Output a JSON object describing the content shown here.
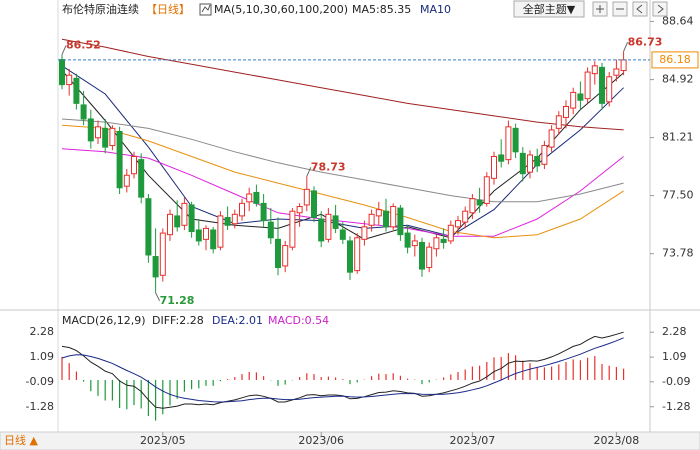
{
  "toolbar": {
    "title": "布伦特原油连续",
    "period": "【日线】",
    "ma_legend": "MA(5,10,30,60,100,200)",
    "ma5": "MA5:85.35",
    "ma10": "MA10",
    "theme_button": "全部主题▼"
  },
  "bottom_bar": {
    "period": "日线 ▲"
  },
  "chart_data": [
    {
      "type": "candlestick",
      "open": [
        86.2,
        84.6,
        85.0,
        83.3,
        82.4,
        81.2,
        81.8,
        80.7,
        81.6,
        78.1,
        78.9,
        79.8,
        77.3,
        73.6,
        72.4,
        75.0,
        76.2,
        75.6,
        76.9,
        75.3,
        74.7,
        75.3,
        74.2,
        76.1,
        75.7,
        76.2,
        77.1,
        77.7,
        77.0,
        75.8,
        74.7,
        73.0,
        74.2,
        76.4,
        76.9,
        77.8,
        76.0,
        74.7,
        76.2,
        75.3,
        74.6,
        72.7,
        74.7,
        75.6,
        76.2,
        76.5,
        75.5,
        76.7,
        75.1,
        74.3,
        74.5,
        72.9,
        74.1,
        74.7,
        74.6,
        75.5,
        75.8,
        76.4,
        77.2,
        77.0,
        78.6,
        80.1,
        79.8,
        81.8,
        80.2,
        79.0,
        80.0,
        79.5,
        80.6,
        81.8,
        82.5,
        83.1,
        84.0,
        83.7,
        85.3,
        85.7,
        83.5,
        85.2,
        85.5
      ],
      "high": [
        86.52,
        85.6,
        85.3,
        84.2,
        83.0,
        82.3,
        82.4,
        82.0,
        81.9,
        79.2,
        80.3,
        80.2,
        77.6,
        75.4,
        75.4,
        76.6,
        77.2,
        77.4,
        77.1,
        76.0,
        75.6,
        75.5,
        76.5,
        76.8,
        76.6,
        77.3,
        78.0,
        78.2,
        77.6,
        76.7,
        76.1,
        74.6,
        76.7,
        77.0,
        78.73,
        78.1,
        76.5,
        76.7,
        76.9,
        75.8,
        74.9,
        75.1,
        75.9,
        76.6,
        77.1,
        77.3,
        77.0,
        76.9,
        75.6,
        75.0,
        74.8,
        74.5,
        75.0,
        75.4,
        75.9,
        76.2,
        76.8,
        77.6,
        78.0,
        79.0,
        80.3,
        81.1,
        82.3,
        82.1,
        80.6,
        80.4,
        80.5,
        81.0,
        82.0,
        82.9,
        83.6,
        84.4,
        84.8,
        85.7,
        86.1,
        86.0,
        85.4,
        86.2,
        86.73
      ],
      "low": [
        84.3,
        83.9,
        83.0,
        82.0,
        80.5,
        80.8,
        80.2,
        80.4,
        77.6,
        77.7,
        78.6,
        77.0,
        73.2,
        71.28,
        72.0,
        74.6,
        75.2,
        75.3,
        74.8,
        74.3,
        74.0,
        73.8,
        74.0,
        75.3,
        75.4,
        75.9,
        76.5,
        76.8,
        75.5,
        74.4,
        72.4,
        72.6,
        74.0,
        75.5,
        76.5,
        75.8,
        74.2,
        74.5,
        75.1,
        74.4,
        72.1,
        72.5,
        74.3,
        75.2,
        75.6,
        75.2,
        75.3,
        74.6,
        73.8,
        73.6,
        72.3,
        72.6,
        73.6,
        74.1,
        74.4,
        75.0,
        75.4,
        76.0,
        76.4,
        76.8,
        78.2,
        79.3,
        79.5,
        79.9,
        78.4,
        78.6,
        79.0,
        79.2,
        80.3,
        81.4,
        81.8,
        82.7,
        83.0,
        83.4,
        84.6,
        83.0,
        83.2,
        84.8,
        85.2
      ],
      "close": [
        84.6,
        85.2,
        83.4,
        82.4,
        81.0,
        81.9,
        80.6,
        81.8,
        78.0,
        78.8,
        80.0,
        77.4,
        73.7,
        72.3,
        75.1,
        76.3,
        75.5,
        77.0,
        75.2,
        74.6,
        75.4,
        74.1,
        76.2,
        75.6,
        76.3,
        77.0,
        77.6,
        77.0,
        75.9,
        74.8,
        72.9,
        74.3,
        76.5,
        76.8,
        77.9,
        76.1,
        74.6,
        76.3,
        75.4,
        74.7,
        72.6,
        74.8,
        75.5,
        76.3,
        76.6,
        75.5,
        76.8,
        75.0,
        74.2,
        74.6,
        72.8,
        74.2,
        74.8,
        74.5,
        75.6,
        75.9,
        76.5,
        77.3,
        76.9,
        78.7,
        80.0,
        79.7,
        81.9,
        80.3,
        78.9,
        80.1,
        79.4,
        80.7,
        81.7,
        82.6,
        83.2,
        84.1,
        83.6,
        85.4,
        85.8,
        83.4,
        85.1,
        85.6,
        86.18
      ],
      "up_color": "#e8302c",
      "down_color": "#1e9a3c",
      "last_price_color": "#f08a00",
      "last_line_color": "#3a7fc0",
      "series": [
        {
          "color": "#222222",
          "x": [
            0,
            6,
            12,
            18,
            24,
            30,
            36,
            42,
            48,
            54,
            60,
            66,
            72,
            78
          ],
          "values": [
            85.5,
            82.3,
            78.8,
            76.0,
            75.6,
            75.4,
            76.3,
            74.7,
            75.5,
            74.8,
            77.8,
            79.9,
            83.0,
            85.35
          ]
        },
        {
          "color": "#1a2a7a",
          "x": [
            0,
            6,
            12,
            18,
            24,
            30,
            36,
            42,
            48,
            54,
            60,
            66,
            72,
            78
          ],
          "values": [
            85.8,
            84.0,
            80.6,
            76.8,
            75.7,
            76.0,
            75.9,
            75.4,
            75.6,
            74.9,
            76.6,
            79.5,
            81.7,
            84.4
          ]
        },
        {
          "color": "#dd22dd",
          "x": [
            0,
            6,
            12,
            18,
            24,
            30,
            36,
            42,
            48,
            54,
            60,
            66,
            72,
            78
          ],
          "values": [
            80.5,
            80.3,
            79.9,
            78.8,
            77.6,
            76.4,
            76.0,
            75.7,
            75.4,
            74.9,
            74.9,
            76.0,
            77.8,
            80.0
          ]
        },
        {
          "color": "#e8900f",
          "x": [
            0,
            6,
            12,
            18,
            24,
            30,
            36,
            42,
            48,
            54,
            60,
            66,
            72,
            78
          ],
          "values": [
            82.0,
            81.8,
            81.0,
            80.0,
            79.0,
            78.3,
            77.6,
            76.9,
            76.1,
            75.2,
            74.8,
            75.0,
            76.0,
            77.8
          ]
        },
        {
          "color": "#8a8a8a",
          "x": [
            0,
            6,
            12,
            18,
            24,
            30,
            36,
            42,
            48,
            54,
            60,
            66,
            72,
            78
          ],
          "values": [
            82.4,
            82.2,
            81.8,
            81.1,
            80.3,
            79.6,
            79.0,
            78.5,
            78.0,
            77.5,
            77.1,
            77.1,
            77.6,
            78.3
          ]
        },
        {
          "color": "#a02020",
          "x": [
            0,
            6,
            12,
            18,
            24,
            30,
            36,
            42,
            48,
            54,
            60,
            66,
            72,
            78
          ],
          "values": [
            87.5,
            87.0,
            86.4,
            85.9,
            85.4,
            84.9,
            84.4,
            83.9,
            83.4,
            83.0,
            82.6,
            82.2,
            81.9,
            81.7
          ]
        }
      ],
      "annotations": [
        {
          "x": 0,
          "y": 86.52,
          "color": "#c8382c"
        },
        {
          "x": 34,
          "y": 78.73,
          "color": "#c8382c"
        },
        {
          "x": 13,
          "y": 71.28,
          "color": "#2a9a3a"
        },
        {
          "x": 78,
          "y": 86.73,
          "color": "#c8382c"
        }
      ],
      "ylim": [
        70.5,
        89.5
      ],
      "yticks": [
        88.64,
        84.92,
        81.21,
        {
          "value": 77.5,
          "label": "77.50"
        },
        73.78
      ]
    },
    {
      "type": "macd",
      "title": "MACD(26,12,9)",
      "dif_label": "DIFF:2.28",
      "dea_label": "DEA:2.01",
      "macd_label": "MACD:0.54",
      "categories": [
        null,
        null,
        null,
        null,
        null,
        null,
        null,
        null,
        null,
        null,
        null,
        null,
        null,
        null,
        "2023/05",
        null,
        null,
        null,
        null,
        null,
        null,
        null,
        null,
        null,
        null,
        null,
        null,
        null,
        null,
        null,
        null,
        null,
        null,
        null,
        null,
        null,
        "2023/06",
        null,
        null,
        null,
        null,
        null,
        null,
        null,
        null,
        null,
        null,
        null,
        null,
        null,
        null,
        null,
        null,
        null,
        null,
        null,
        null,
        "2023/07",
        null,
        null,
        null,
        null,
        null,
        null,
        null,
        null,
        null,
        null,
        null,
        null,
        null,
        null,
        null,
        null,
        null,
        null,
        null,
        "2023/08",
        null
      ],
      "series": [
        {
          "color": "#222222",
          "values": [
            1.6,
            1.55,
            1.4,
            1.15,
            0.85,
            0.65,
            0.42,
            0.3,
            -0.05,
            -0.25,
            -0.3,
            -0.55,
            -0.95,
            -1.3,
            -1.35,
            -1.3,
            -1.25,
            -1.15,
            -1.15,
            -1.18,
            -1.15,
            -1.18,
            -1.08,
            -1.02,
            -0.95,
            -0.85,
            -0.75,
            -0.72,
            -0.78,
            -0.88,
            -1.05,
            -1.05,
            -0.95,
            -0.85,
            -0.72,
            -0.7,
            -0.75,
            -0.72,
            -0.72,
            -0.75,
            -0.9,
            -0.88,
            -0.8,
            -0.7,
            -0.6,
            -0.58,
            -0.52,
            -0.55,
            -0.62,
            -0.64,
            -0.78,
            -0.75,
            -0.68,
            -0.62,
            -0.52,
            -0.42,
            -0.3,
            -0.15,
            -0.05,
            0.15,
            0.4,
            0.55,
            0.8,
            0.9,
            0.88,
            0.92,
            0.9,
            0.98,
            1.1,
            1.25,
            1.42,
            1.6,
            1.7,
            1.9,
            2.08,
            2.0,
            2.08,
            2.18,
            2.28
          ]
        },
        {
          "color": "#1a2a8a",
          "values": [
            1.05,
            1.15,
            1.2,
            1.19,
            1.12,
            1.03,
            0.91,
            0.79,
            0.62,
            0.45,
            0.3,
            0.13,
            -0.09,
            -0.33,
            -0.53,
            -0.69,
            -0.8,
            -0.87,
            -0.93,
            -0.98,
            -1.01,
            -1.04,
            -1.05,
            -1.04,
            -1.02,
            -0.99,
            -0.94,
            -0.9,
            -0.87,
            -0.87,
            -0.91,
            -0.94,
            -0.94,
            -0.92,
            -0.88,
            -0.84,
            -0.82,
            -0.8,
            -0.78,
            -0.77,
            -0.8,
            -0.82,
            -0.81,
            -0.79,
            -0.75,
            -0.72,
            -0.68,
            -0.65,
            -0.65,
            -0.65,
            -0.68,
            -0.69,
            -0.69,
            -0.68,
            -0.65,
            -0.61,
            -0.55,
            -0.47,
            -0.39,
            -0.28,
            -0.14,
            0.0,
            0.16,
            0.31,
            0.42,
            0.52,
            0.6,
            0.68,
            0.78,
            0.88,
            0.99,
            1.11,
            1.23,
            1.37,
            1.51,
            1.62,
            1.74,
            1.87,
            2.01
          ]
        }
      ],
      "histogram": {
        "up_color": "#e8302c",
        "down_color": "#1e9a3c",
        "values": [
          1.1,
          0.8,
          0.4,
          -0.08,
          -0.54,
          -0.76,
          -0.98,
          -0.98,
          -1.34,
          -1.4,
          -1.2,
          -1.36,
          -1.72,
          -1.94,
          -1.64,
          -1.22,
          -0.9,
          -0.56,
          -0.44,
          -0.4,
          -0.28,
          -0.28,
          -0.06,
          0.04,
          0.14,
          0.28,
          0.38,
          0.36,
          0.18,
          -0.02,
          -0.28,
          -0.22,
          -0.02,
          0.14,
          0.32,
          0.28,
          0.14,
          0.16,
          0.12,
          0.04,
          -0.2,
          -0.12,
          0.02,
          0.18,
          0.3,
          0.28,
          0.32,
          0.2,
          0.06,
          0.02,
          -0.2,
          -0.12,
          0.02,
          0.12,
          0.26,
          0.38,
          0.5,
          0.64,
          0.68,
          0.86,
          1.08,
          1.1,
          1.28,
          1.18,
          0.92,
          0.8,
          0.6,
          0.6,
          0.64,
          0.74,
          0.86,
          0.98,
          0.94,
          1.06,
          1.14,
          0.76,
          0.68,
          0.62,
          0.54
        ]
      },
      "ylim": [
        -2.15,
        3.1
      ],
      "yticks": [
        2.28,
        1.09,
        -0.09,
        -1.28
      ]
    }
  ]
}
